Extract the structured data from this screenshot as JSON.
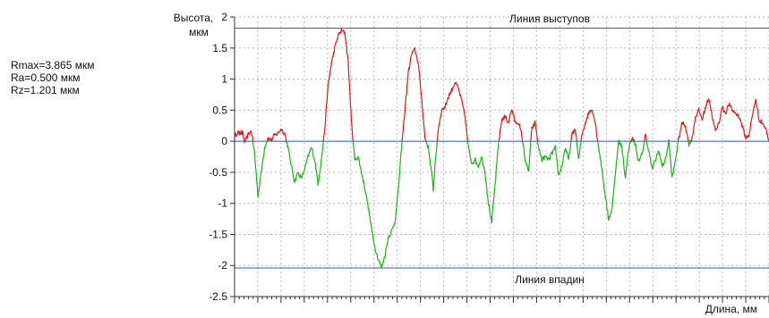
{
  "stats": {
    "rmax": "Rmax=3.865 мкм",
    "ra": "Ra=0.500 мкм",
    "rz": "Rz=1.201 мкм"
  },
  "chart_data": {
    "type": "line",
    "title": "",
    "ylabel_line1": "Высота,",
    "ylabel_line2": "мкм",
    "xlabel": "Длина, мм",
    "ylim": [
      -2.5,
      2
    ],
    "yticks": [
      2,
      1.5,
      1,
      0.5,
      0,
      -0.5,
      -1,
      -1.5,
      -2,
      -2.5
    ],
    "ytick_labels": [
      "2",
      "1.5",
      "1",
      "0.5",
      "0",
      "-0.5",
      "-1",
      "-1.5",
      "-2",
      "-2.5"
    ],
    "x_major_ticks": 23,
    "x_minor_ticks": 115,
    "x_tick_labels_shown": false,
    "grid": true,
    "reference_lines": [
      {
        "name": "Линия выступов",
        "y": 1.82,
        "color": "#3355cc"
      },
      {
        "name": "Линия впадин",
        "y": -2.04,
        "color": "#3355cc"
      },
      {
        "name": "mean",
        "y": 0,
        "color": "#3355cc"
      }
    ],
    "colors": {
      "above": "#e8141c",
      "below": "#14b814",
      "axis": "#333333",
      "grid": "#bbbbbb"
    },
    "profile_keypoints": [
      [
        0,
        0.08
      ],
      [
        2,
        0.14
      ],
      [
        3,
        0.12
      ],
      [
        4,
        0.15
      ],
      [
        5,
        0.12
      ],
      [
        6,
        -0.03
      ],
      [
        8,
        0.1
      ],
      [
        10,
        0.17
      ],
      [
        12,
        -0.2
      ],
      [
        14,
        -0.88
      ],
      [
        16,
        -0.5
      ],
      [
        18,
        -0.1
      ],
      [
        20,
        0.05
      ],
      [
        22,
        0.02
      ],
      [
        24,
        0.1
      ],
      [
        26,
        0.13
      ],
      [
        28,
        0.2
      ],
      [
        30,
        0.12
      ],
      [
        32,
        -0.1
      ],
      [
        34,
        -0.4
      ],
      [
        36,
        -0.65
      ],
      [
        38,
        -0.5
      ],
      [
        40,
        -0.6
      ],
      [
        42,
        -0.45
      ],
      [
        44,
        -0.25
      ],
      [
        46,
        -0.1
      ],
      [
        48,
        -0.3
      ],
      [
        50,
        -0.68
      ],
      [
        52,
        -0.3
      ],
      [
        54,
        0.2
      ],
      [
        56,
        0.9
      ],
      [
        58,
        1.25
      ],
      [
        60,
        1.5
      ],
      [
        62,
        1.7
      ],
      [
        64,
        1.78
      ],
      [
        66,
        1.75
      ],
      [
        68,
        1.3
      ],
      [
        70,
        0.3
      ],
      [
        72,
        -0.3
      ],
      [
        74,
        -0.25
      ],
      [
        76,
        -0.5
      ],
      [
        78,
        -0.75
      ],
      [
        80,
        -1.05
      ],
      [
        82,
        -1.4
      ],
      [
        84,
        -1.7
      ],
      [
        86,
        -1.9
      ],
      [
        88,
        -2.03
      ],
      [
        90,
        -1.85
      ],
      [
        92,
        -1.55
      ],
      [
        94,
        -1.45
      ],
      [
        96,
        -1.3
      ],
      [
        98,
        -0.8
      ],
      [
        100,
        -0.1
      ],
      [
        102,
        0.5
      ],
      [
        104,
        1.1
      ],
      [
        106,
        1.4
      ],
      [
        108,
        1.48
      ],
      [
        110,
        1.25
      ],
      [
        112,
        0.7
      ],
      [
        114,
        0.05
      ],
      [
        116,
        -0.1
      ],
      [
        118,
        -0.5
      ],
      [
        119,
        -0.78
      ],
      [
        120,
        -0.4
      ],
      [
        122,
        0.2
      ],
      [
        124,
        0.5
      ],
      [
        126,
        0.55
      ],
      [
        128,
        0.72
      ],
      [
        130,
        0.82
      ],
      [
        132,
        0.95
      ],
      [
        134,
        0.85
      ],
      [
        136,
        0.65
      ],
      [
        138,
        0.4
      ],
      [
        140,
        -0.1
      ],
      [
        142,
        -0.35
      ],
      [
        144,
        -0.3
      ],
      [
        146,
        -0.4
      ],
      [
        148,
        -0.25
      ],
      [
        150,
        -0.5
      ],
      [
        152,
        -1.0
      ],
      [
        154,
        -1.3
      ],
      [
        156,
        -0.7
      ],
      [
        158,
        -0.05
      ],
      [
        160,
        0.35
      ],
      [
        162,
        0.4
      ],
      [
        164,
        0.3
      ],
      [
        166,
        0.52
      ],
      [
        168,
        0.3
      ],
      [
        170,
        0.3
      ],
      [
        172,
        0.1
      ],
      [
        174,
        -0.3
      ],
      [
        176,
        -0.5
      ],
      [
        178,
        0.2
      ],
      [
        180,
        0.3
      ],
      [
        182,
        -0.1
      ],
      [
        184,
        -0.3
      ],
      [
        186,
        -0.25
      ],
      [
        188,
        -0.3
      ],
      [
        190,
        -0.2
      ],
      [
        192,
        -0.1
      ],
      [
        194,
        -0.55
      ],
      [
        196,
        -0.4
      ],
      [
        198,
        -0.1
      ],
      [
        200,
        -0.3
      ],
      [
        202,
        0.1
      ],
      [
        204,
        0.2
      ],
      [
        206,
        -0.3
      ],
      [
        208,
        0.1
      ],
      [
        210,
        0.3
      ],
      [
        212,
        0.45
      ],
      [
        214,
        0.52
      ],
      [
        216,
        0.3
      ],
      [
        218,
        -0.1
      ],
      [
        220,
        -0.45
      ],
      [
        222,
        -0.9
      ],
      [
        224,
        -1.25
      ],
      [
        226,
        -1.1
      ],
      [
        228,
        -0.5
      ],
      [
        230,
        0.0
      ],
      [
        232,
        -0.1
      ],
      [
        234,
        -0.6
      ],
      [
        236,
        -0.1
      ],
      [
        238,
        0.05
      ],
      [
        240,
        -0.05
      ],
      [
        242,
        -0.35
      ],
      [
        244,
        -0.2
      ],
      [
        246,
        0.1
      ],
      [
        248,
        -0.15
      ],
      [
        250,
        -0.45
      ],
      [
        252,
        -0.3
      ],
      [
        254,
        -0.15
      ],
      [
        256,
        -0.4
      ],
      [
        258,
        -0.3
      ],
      [
        260,
        0.0
      ],
      [
        262,
        -0.6
      ],
      [
        264,
        -0.3
      ],
      [
        266,
        0.05
      ],
      [
        268,
        0.3
      ],
      [
        270,
        0.25
      ],
      [
        272,
        -0.05
      ],
      [
        274,
        0.05
      ],
      [
        276,
        0.4
      ],
      [
        278,
        0.5
      ],
      [
        280,
        0.35
      ],
      [
        282,
        0.55
      ],
      [
        284,
        0.7
      ],
      [
        286,
        0.4
      ],
      [
        288,
        0.15
      ],
      [
        290,
        0.3
      ],
      [
        292,
        0.55
      ],
      [
        294,
        0.45
      ],
      [
        296,
        0.6
      ],
      [
        298,
        0.5
      ],
      [
        300,
        0.45
      ],
      [
        302,
        0.4
      ],
      [
        304,
        0.25
      ],
      [
        306,
        0.05
      ],
      [
        308,
        0.1
      ],
      [
        310,
        0.4
      ],
      [
        312,
        0.68
      ],
      [
        314,
        0.35
      ],
      [
        316,
        0.3
      ],
      [
        318,
        0.2
      ],
      [
        320,
        0.0
      ]
    ]
  }
}
